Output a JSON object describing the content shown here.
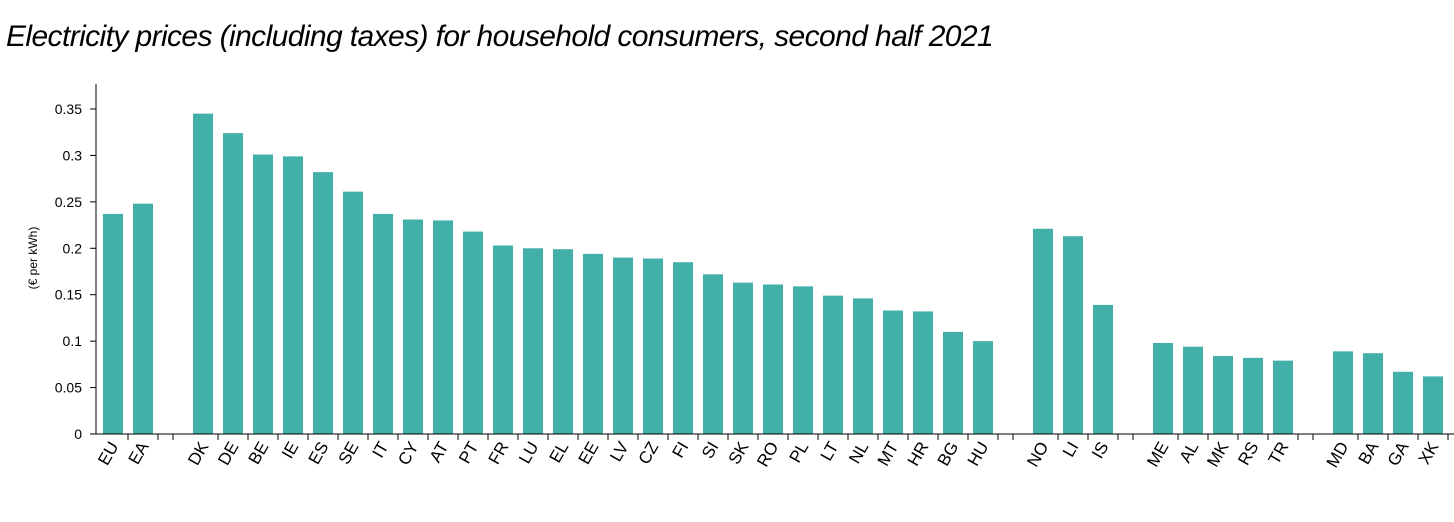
{
  "chart_data": {
    "type": "bar",
    "title": "Electricity prices (including taxes) for household consumers, second half 2021",
    "xlabel": "",
    "ylabel": "(€ per kWh)",
    "ylim": [
      0,
      0.35
    ],
    "yticks": [
      0,
      0.05,
      0.1,
      0.15,
      0.2,
      0.25,
      0.3,
      0.35
    ],
    "ytick_labels": [
      "0",
      "0.05",
      "0.1",
      "0.15",
      "0.2",
      "0.25",
      "0.3",
      "0.35"
    ],
    "grid": false,
    "legend": "none",
    "bar_color": "#42b0a9",
    "groups": [
      {
        "categories": [
          "EU",
          "EA"
        ],
        "values": [
          0.237,
          0.248
        ]
      },
      {
        "categories": [
          "DK",
          "DE",
          "BE",
          "IE",
          "ES",
          "SE",
          "IT",
          "CY",
          "AT",
          "PT",
          "FR",
          "LU",
          "EL",
          "EE",
          "LV",
          "CZ",
          "FI",
          "SI",
          "SK",
          "RO",
          "PL",
          "LT",
          "NL",
          "MT",
          "HR",
          "BG",
          "HU"
        ],
        "values": [
          0.345,
          0.324,
          0.301,
          0.299,
          0.282,
          0.261,
          0.237,
          0.231,
          0.23,
          0.218,
          0.203,
          0.2,
          0.199,
          0.194,
          0.19,
          0.189,
          0.185,
          0.172,
          0.163,
          0.161,
          0.159,
          0.149,
          0.146,
          0.133,
          0.132,
          0.11,
          0.1
        ]
      },
      {
        "categories": [
          "NO",
          "LI",
          "IS"
        ],
        "values": [
          0.221,
          0.213,
          0.139
        ]
      },
      {
        "categories": [
          "ME",
          "AL",
          "MK",
          "RS",
          "TR"
        ],
        "values": [
          0.098,
          0.094,
          0.084,
          0.082,
          0.079
        ]
      },
      {
        "categories": [
          "MD",
          "BA",
          "GA",
          "XK"
        ],
        "values": [
          0.089,
          0.087,
          0.067,
          0.062
        ]
      }
    ]
  }
}
